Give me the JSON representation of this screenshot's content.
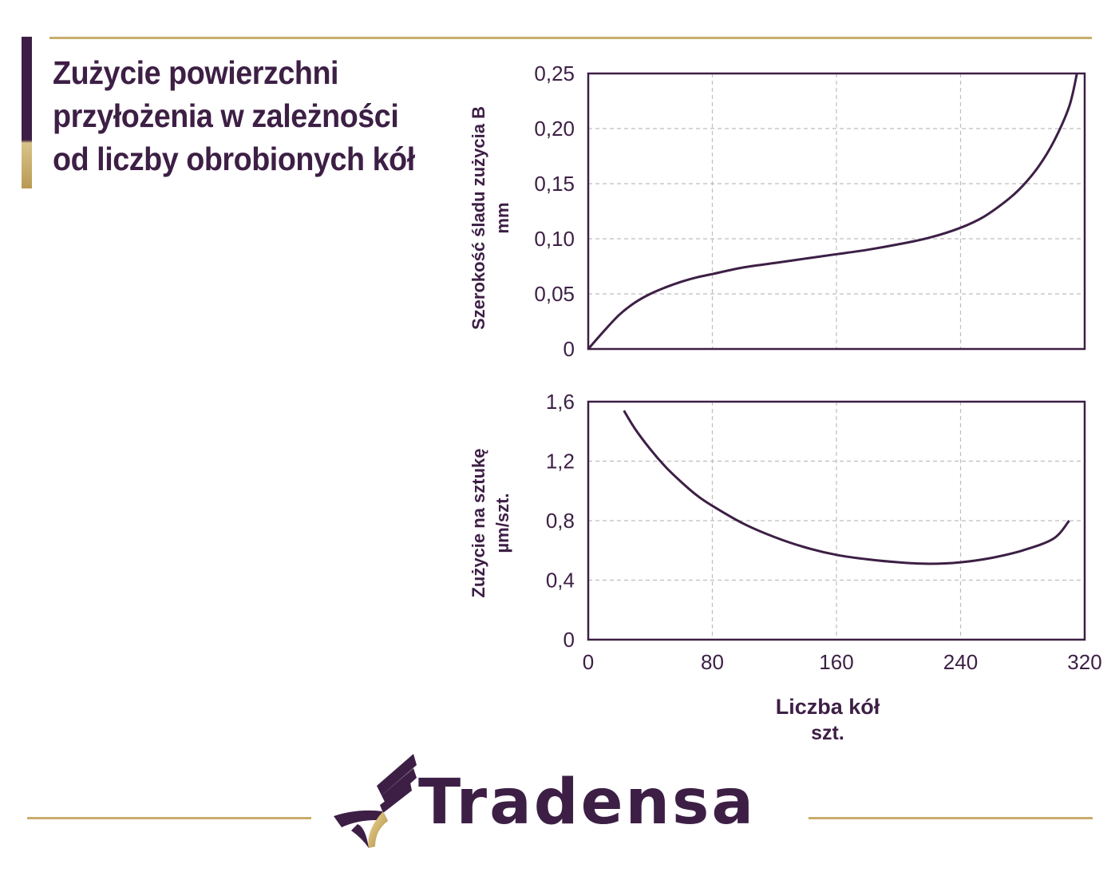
{
  "title_lines": [
    "Zużycie powierzchni",
    "przyłożenia w zależności",
    "od liczby obrobionych kół"
  ],
  "colors": {
    "primary": "#3d1f45",
    "gold": "#c8ad6c",
    "grid": "#bdbdbd"
  },
  "brand": {
    "name": "Tradensa",
    "icon": "tradensa-wing-logo-icon"
  },
  "x_axis": {
    "label": "Liczba kół",
    "unit": "szt.",
    "ticks": [
      0,
      80,
      160,
      240,
      320
    ],
    "range": [
      0,
      320
    ]
  },
  "chart_data": [
    {
      "type": "line",
      "ylabel": "Szerokość śladu zużycia B",
      "yunit": "mm",
      "ylim": [
        0,
        0.25
      ],
      "yticks": [
        "0",
        "0,05",
        "0,10",
        "0,15",
        "0,20",
        "0,25"
      ],
      "ytick_values": [
        0,
        0.05,
        0.1,
        0.15,
        0.2,
        0.25
      ],
      "grid": true,
      "series": [
        {
          "x": [
            0,
            10,
            20,
            30,
            40,
            50,
            60,
            70,
            80,
            100,
            120,
            140,
            160,
            180,
            200,
            220,
            240,
            255,
            270,
            280,
            290,
            300,
            310,
            315
          ],
          "y": [
            0,
            0.016,
            0.031,
            0.042,
            0.05,
            0.056,
            0.061,
            0.065,
            0.068,
            0.074,
            0.078,
            0.082,
            0.086,
            0.09,
            0.095,
            0.101,
            0.11,
            0.12,
            0.135,
            0.148,
            0.165,
            0.188,
            0.22,
            0.25
          ]
        }
      ]
    },
    {
      "type": "line",
      "ylabel": "Zużycie na sztukę",
      "yunit": "µm/szt.",
      "ylim": [
        0,
        1.6
      ],
      "yticks": [
        "0",
        "0,4",
        "0,8",
        "1,2",
        "1,6"
      ],
      "ytick_values": [
        0,
        0.4,
        0.8,
        1.2,
        1.6
      ],
      "grid": true,
      "series": [
        {
          "x": [
            23,
            30,
            40,
            50,
            60,
            70,
            80,
            100,
            120,
            140,
            160,
            180,
            200,
            220,
            240,
            260,
            280,
            300,
            310
          ],
          "y": [
            1.54,
            1.42,
            1.28,
            1.16,
            1.06,
            0.97,
            0.9,
            0.78,
            0.69,
            0.62,
            0.57,
            0.54,
            0.52,
            0.51,
            0.52,
            0.55,
            0.6,
            0.68,
            0.8
          ]
        }
      ]
    }
  ]
}
